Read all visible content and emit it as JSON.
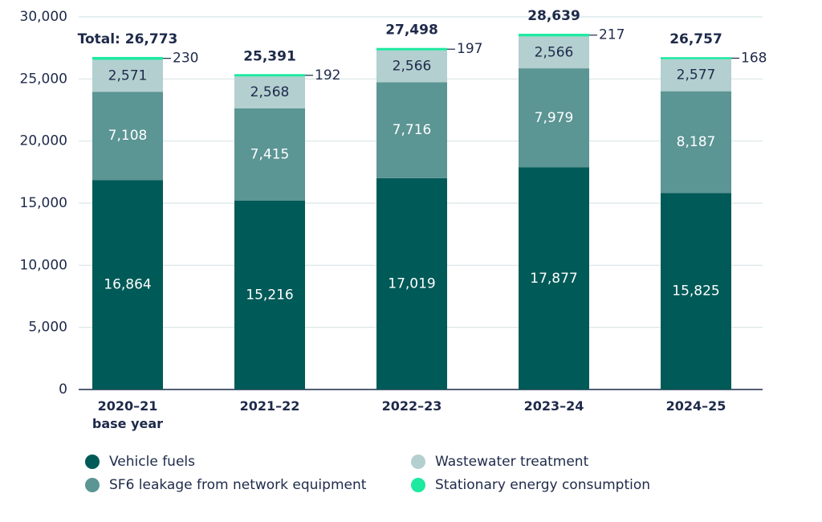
{
  "chart_data": {
    "type": "stacked_bar",
    "categories": [
      "2020–21\nbase year",
      "2021–22",
      "2022–23",
      "2023–24",
      "2024–25"
    ],
    "series": [
      {
        "name": "Vehicle fuels",
        "color": "#005a58",
        "values": [
          16864,
          15216,
          17019,
          17877,
          15825
        ],
        "value_labels": [
          "16,864",
          "15,216",
          "17,019",
          "17,877",
          "15,825"
        ]
      },
      {
        "name": "SF6 leakage from network equipment",
        "color": "#5b9594",
        "values": [
          7108,
          7415,
          7716,
          7979,
          8187
        ],
        "value_labels": [
          "7,108",
          "7,415",
          "7,716",
          "7,979",
          "8,187"
        ]
      },
      {
        "name": "Wastewater treatment",
        "color": "#b3cfd0",
        "values": [
          2571,
          2568,
          2566,
          2566,
          2577
        ],
        "value_labels": [
          "2,571",
          "2,568",
          "2,566",
          "2,566",
          "2,577"
        ]
      },
      {
        "name": "Stationary energy consumption",
        "color": "#1de9a0",
        "values": [
          230,
          192,
          197,
          217,
          168
        ]
      }
    ],
    "totals": {
      "values": [
        26773,
        25391,
        27498,
        28639,
        26757
      ],
      "value_labels": [
        "Total: 26,773",
        "25,391",
        "27,498",
        "28,639",
        "26,757"
      ]
    },
    "ylim": [
      0,
      30000
    ],
    "yticks": [
      0,
      {
        "value": 5000,
        "label": "5,000"
      },
      {
        "value": 10000,
        "label": "10,000"
      },
      {
        "value": 15000,
        "label": "15,000"
      },
      {
        "value": 20000,
        "label": "20,000"
      },
      {
        "value": 25000,
        "label": "25,000"
      },
      {
        "value": 30000,
        "label": "30,000"
      }
    ],
    "grid": true
  }
}
